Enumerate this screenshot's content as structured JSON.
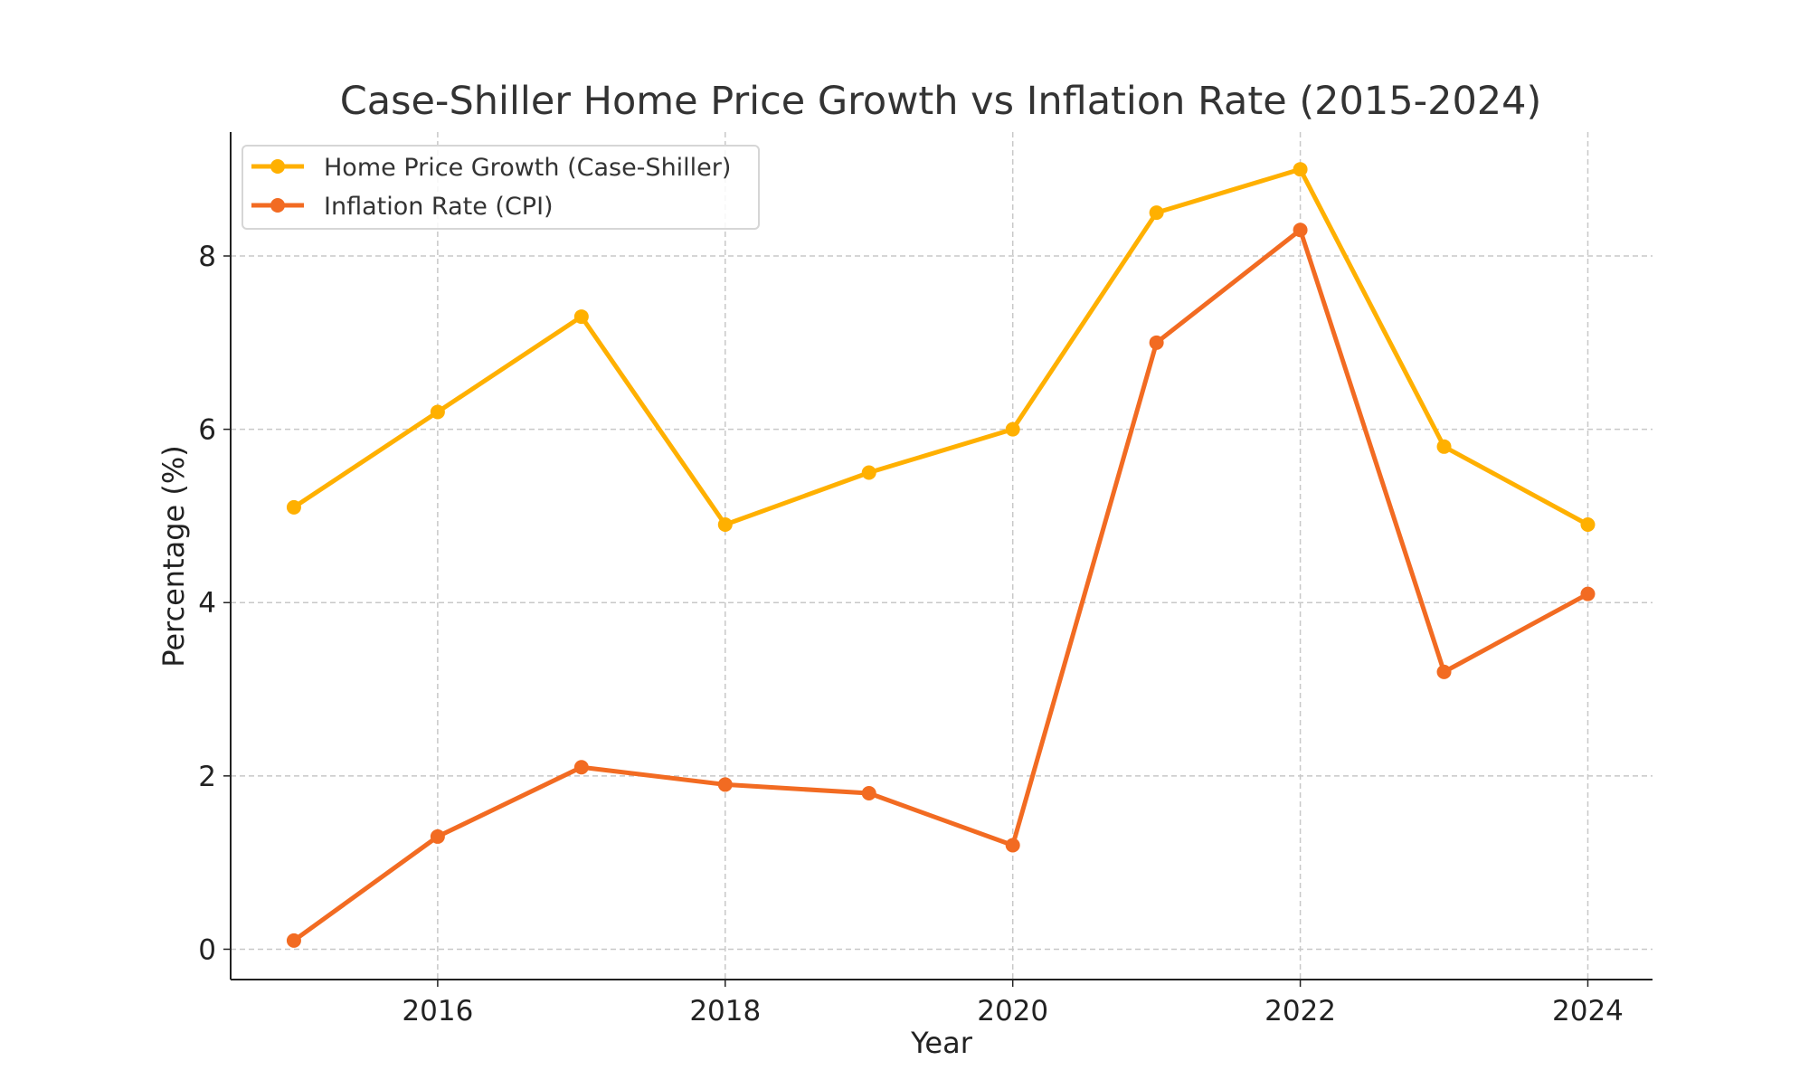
{
  "chart_data": {
    "type": "line",
    "title": "Case-Shiller Home Price Growth vs Inflation Rate (2015-2024)",
    "xlabel": "Year",
    "ylabel": "Percentage (%)",
    "x": [
      2015,
      2016,
      2017,
      2018,
      2019,
      2020,
      2021,
      2022,
      2023,
      2024
    ],
    "series": [
      {
        "name": "Home Price Growth (Case-Shiller)",
        "color": "#FFB000",
        "values": [
          5.1,
          6.2,
          7.3,
          4.9,
          5.5,
          6.0,
          8.5,
          9.0,
          5.8,
          4.9
        ]
      },
      {
        "name": "Inflation Rate (CPI)",
        "color": "#F26B22",
        "values": [
          0.1,
          1.3,
          2.1,
          1.9,
          1.8,
          1.2,
          7.0,
          8.3,
          3.2,
          4.1
        ]
      }
    ],
    "xlim": [
      2014.56,
      2024.45
    ],
    "ylim": [
      -0.35,
      9.43
    ],
    "xticks": [
      "2016",
      "2018",
      "2020",
      "2022",
      "2024"
    ],
    "yticks": [
      "0",
      "2",
      "4",
      "6",
      "8"
    ],
    "grid": true,
    "legend_position": "top-left"
  }
}
